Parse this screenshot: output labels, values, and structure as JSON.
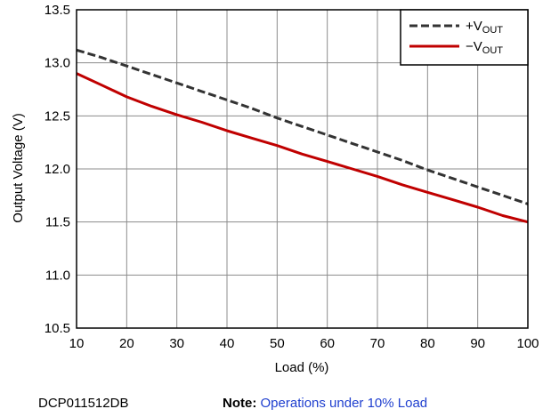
{
  "chart_data": {
    "type": "line",
    "title": "",
    "xlabel": "Load (%)",
    "ylabel": "Output Voltage (V)",
    "xlim": [
      10,
      100
    ],
    "ylim": [
      10.5,
      13.5
    ],
    "x_ticks": [
      "10",
      "20",
      "30",
      "40",
      "50",
      "60",
      "70",
      "80",
      "90",
      "100"
    ],
    "y_ticks": [
      "10.5",
      "11.0",
      "11.5",
      "12.0",
      "12.5",
      "13.0",
      "13.5"
    ],
    "grid": true,
    "legend_position": "top-right",
    "series": [
      {
        "name_main": "+V",
        "name_sub": "OUT",
        "style": "dashed",
        "color": "#333333",
        "x": [
          10,
          15,
          20,
          25,
          30,
          35,
          40,
          45,
          50,
          55,
          60,
          65,
          70,
          75,
          80,
          85,
          90,
          95,
          100
        ],
        "y": [
          13.12,
          13.05,
          12.97,
          12.89,
          12.81,
          12.73,
          12.65,
          12.57,
          12.48,
          12.4,
          12.32,
          12.24,
          12.16,
          12.08,
          11.99,
          11.91,
          11.83,
          11.75,
          11.67
        ]
      },
      {
        "name_main": "−V",
        "name_sub": "OUT",
        "style": "solid",
        "color": "#c00000",
        "x": [
          10,
          15,
          20,
          25,
          30,
          35,
          40,
          45,
          50,
          55,
          60,
          65,
          70,
          75,
          80,
          85,
          90,
          95,
          100
        ],
        "y": [
          12.9,
          12.79,
          12.68,
          12.59,
          12.51,
          12.44,
          12.36,
          12.29,
          12.22,
          12.14,
          12.07,
          12.0,
          11.93,
          11.85,
          11.78,
          11.71,
          11.64,
          11.56,
          11.5
        ]
      }
    ]
  },
  "footer": {
    "part_number": "DCP011512DB",
    "note_label": "Note:",
    "note_text": "Operations under 10% Load"
  }
}
